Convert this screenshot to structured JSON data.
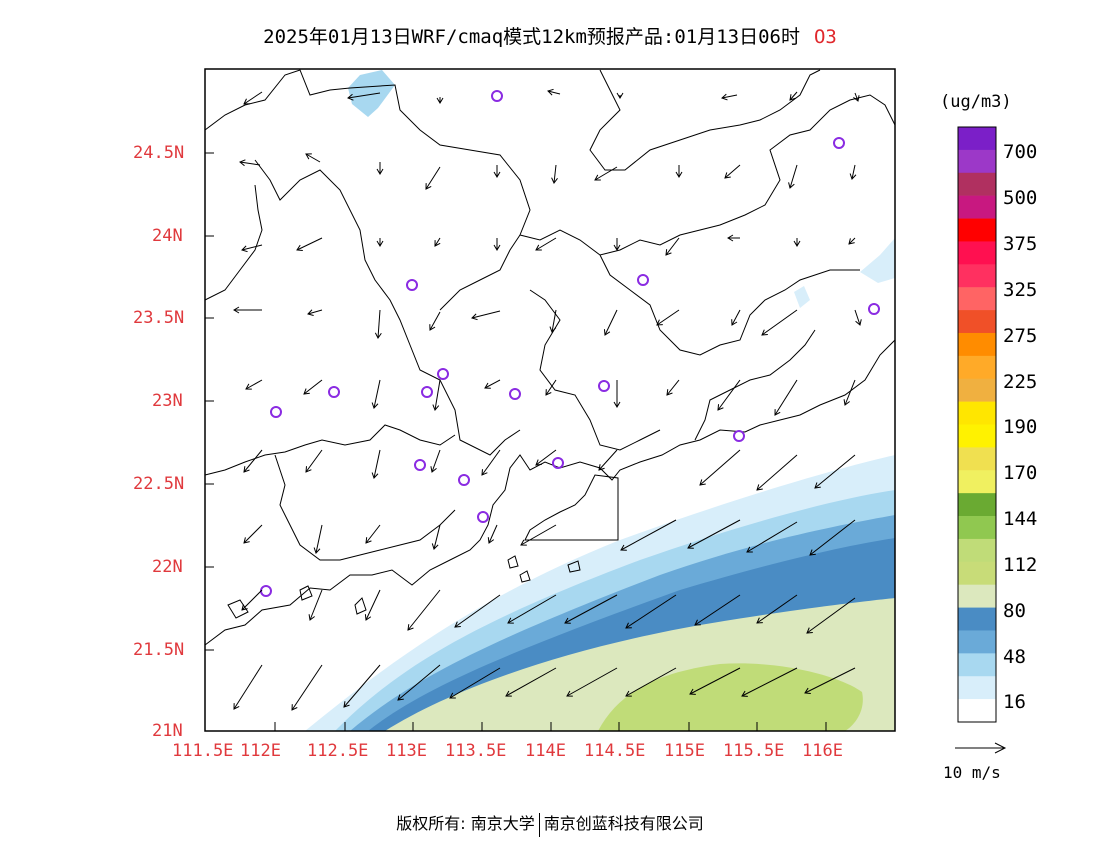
{
  "title": "2025年01月13日WRF/cmaq模式12km预报产品:01月13日06时",
  "pollutant": "O3",
  "map": {
    "x_ticks": [
      "111.5E",
      "112E",
      "112.5E",
      "113E",
      "113.5E",
      "114E",
      "114.5E",
      "115E",
      "115.5E",
      "116E"
    ],
    "y_ticks": [
      "24.5N",
      "24N",
      "23.5N",
      "23N",
      "22.5N",
      "22N",
      "21.5N",
      "21N"
    ],
    "lon_range": [
      111.5,
      116.5
    ],
    "lat_range": [
      21.0,
      25.0
    ]
  },
  "colorbar": {
    "unit": "(ug/m3)",
    "labels": [
      "700",
      "500",
      "375",
      "325",
      "275",
      "225",
      "190",
      "170",
      "144",
      "112",
      "80",
      "48",
      "16"
    ],
    "colors": [
      "#7b1fc8",
      "#9c38c8",
      "#b03060",
      "#c81880",
      "#ff0000",
      "#ff1050",
      "#ff3060",
      "#ff6464",
      "#f05028",
      "#ff8c00",
      "#ffaa28",
      "#f0b040",
      "#ffe600",
      "#fff200",
      "#f0e050",
      "#f0f060",
      "#6aaa32",
      "#90c850",
      "#c0dc78",
      "#c8dc78",
      "#dce8be",
      "#4a8cc4",
      "#6aaad8",
      "#a8d8f0",
      "#d8eefa",
      "#ffffff"
    ]
  },
  "wind_reference": {
    "label": "10 m/s"
  },
  "footer": {
    "left": "版权所有: 南京大学",
    "right": "南京创蓝科技有限公司"
  }
}
